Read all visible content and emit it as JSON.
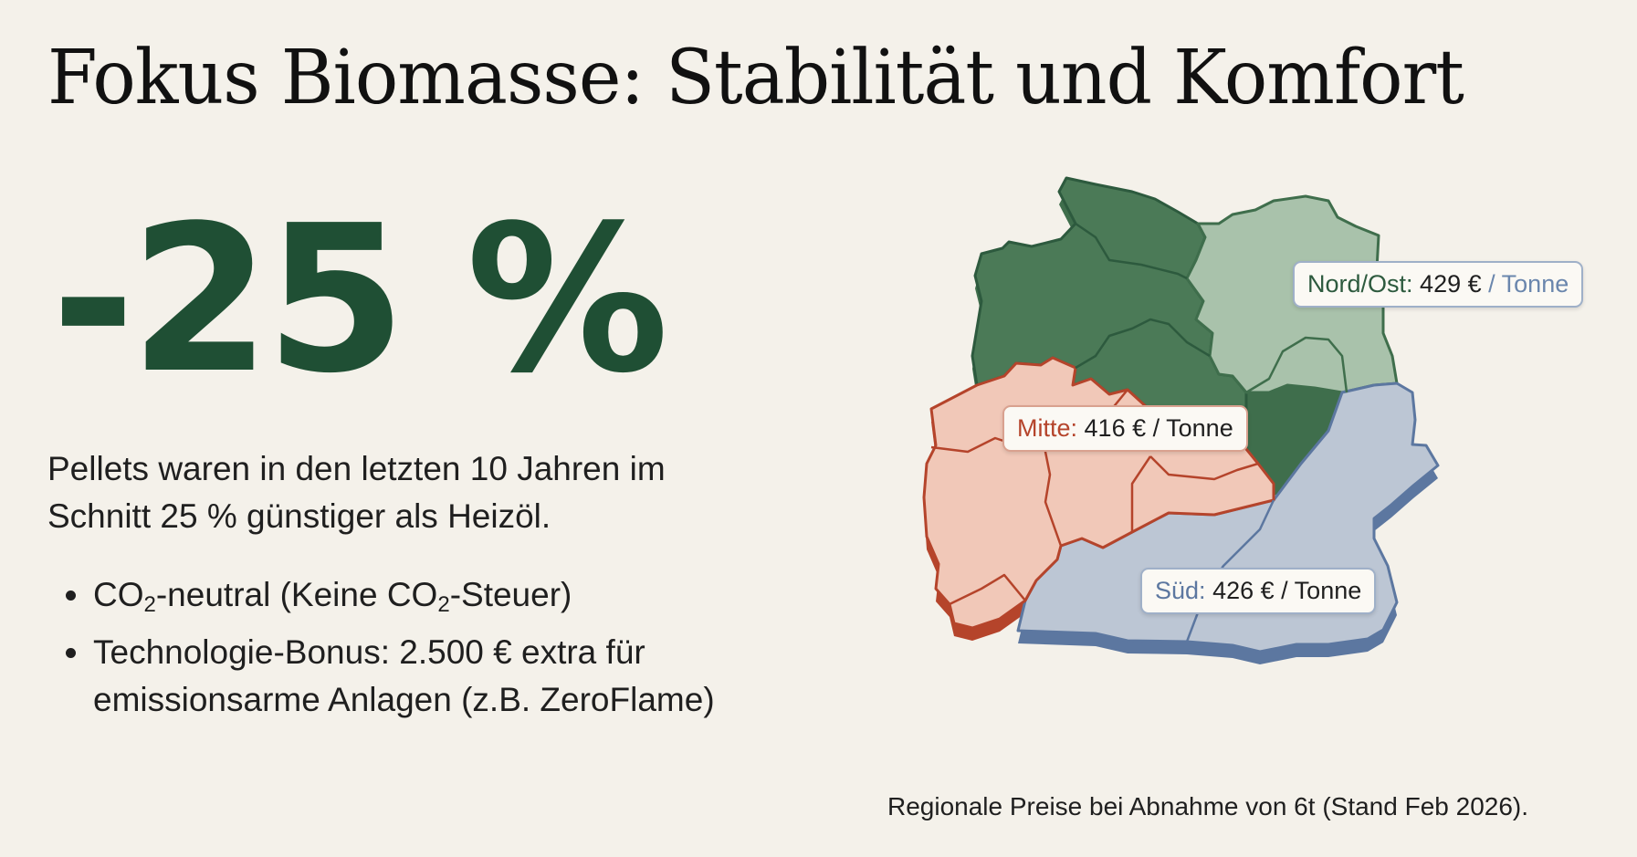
{
  "title": "Fokus Biomasse: Stabilität und Komfort",
  "headline_value": "-25 %",
  "description": "Pellets waren in den letzten 10 Jahren im Schnitt 25 % günstiger als Heizöl.",
  "bullets": {
    "b1_part1": "CO",
    "b1_sub1": "2",
    "b1_part2": "-neutral (Keine CO",
    "b1_sub2": "2",
    "b1_part3": "-Steuer)",
    "b2": "Technologie-Bonus: 2.500 € extra für emissionsarme Anlagen (z.B. ZeroFlame)"
  },
  "regions": {
    "nord_ost": {
      "label": "Nord/Ost:",
      "price": "429 €",
      "unit": "/ Tonne",
      "color": "#a9c2ab"
    },
    "mitte": {
      "label": "Mitte:",
      "price": "416 €",
      "unit": "/ Tonne",
      "color": "#f1c8b8"
    },
    "sued": {
      "label": "Süd:",
      "price": "426 €",
      "unit": "/ Tonne",
      "color": "#bcc6d4"
    }
  },
  "colors": {
    "accent_green": "#1f4f34",
    "nord_dark": "#3f6e4c",
    "mitte_edge": "#b5442b",
    "sued_edge": "#5c77a0"
  },
  "footnote": "Regionale Preise bei Abnahme von 6t (Stand Feb 2026)."
}
